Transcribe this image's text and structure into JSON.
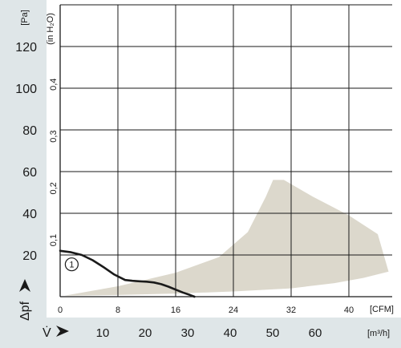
{
  "chart_data": {
    "type": "line",
    "colors": {
      "panel_background": "#dfe6e8",
      "plot_background": "#ffffff",
      "grid": "#1a1a1a",
      "curve": "#1a1a1a",
      "operating_area": "#dcd8cc"
    },
    "y_axis_left": {
      "unit_label": "[Pa]",
      "range": [
        0,
        140
      ],
      "ticks": [
        20,
        40,
        60,
        80,
        100,
        120
      ],
      "tick_labels": [
        "20",
        "40",
        "60",
        "80",
        "100",
        "120"
      ],
      "symbol": "Δpf"
    },
    "y_axis_secondary": {
      "unit_label": "(in H₂O)",
      "ticks": [
        0.1,
        0.2,
        0.3,
        0.4
      ],
      "tick_labels": [
        "0,1",
        "0,2",
        "0,3",
        "0,4"
      ]
    },
    "x_axis_cfm": {
      "unit_label": "[CFM]",
      "range": [
        0,
        46
      ],
      "ticks": [
        0,
        8,
        16,
        24,
        32,
        40
      ],
      "tick_labels": [
        "0",
        "8",
        "16",
        "24",
        "32",
        "40"
      ]
    },
    "x_axis_m3h": {
      "unit_label": "[m³/h]",
      "symbol": "V̇",
      "ticks": [
        10,
        20,
        30,
        40,
        50,
        60
      ],
      "tick_labels": [
        "10",
        "20",
        "30",
        "40",
        "50",
        "60"
      ]
    },
    "series": [
      {
        "marker_label": "1",
        "x": [
          0,
          1.5,
          3,
          4.5,
          6,
          7.5,
          9,
          10,
          11,
          12,
          13,
          14,
          15,
          16,
          17,
          18,
          18.6
        ],
        "y": [
          22,
          21.3,
          20,
          17.5,
          14.2,
          10.6,
          8,
          7.6,
          7.4,
          7.2,
          6.8,
          6,
          4.8,
          3.4,
          2,
          0.8,
          0
        ]
      }
    ],
    "shaded_area": {
      "x": [
        0.6,
        8,
        16,
        22,
        26,
        28.5,
        29.5,
        31,
        35,
        40,
        44,
        45.5,
        42,
        38,
        32,
        24,
        16,
        8,
        0.6
      ],
      "y": [
        0.5,
        5,
        11.5,
        19,
        31,
        48,
        56,
        56,
        48,
        39,
        30,
        12,
        9,
        6.5,
        4,
        2.5,
        1.5,
        0.8,
        0.5
      ]
    }
  }
}
